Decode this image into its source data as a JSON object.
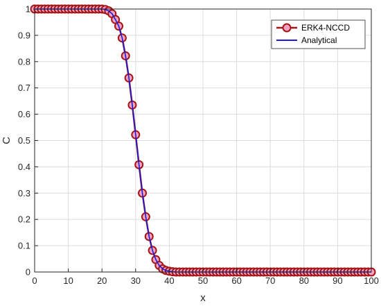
{
  "chart_data": {
    "type": "line",
    "xlabel": "x",
    "ylabel": "C",
    "xlim": [
      0,
      100
    ],
    "ylim": [
      0,
      1
    ],
    "xticks": [
      "0",
      "10",
      "20",
      "30",
      "40",
      "50",
      "60",
      "70",
      "80",
      "90",
      "100"
    ],
    "yticks": [
      "0",
      "0.1",
      "0.2",
      "0.3",
      "0.4",
      "0.5",
      "0.6",
      "0.7",
      "0.8",
      "0.9",
      "1"
    ],
    "grid": true,
    "legend_position": "top-right",
    "series": [
      {
        "name": "ERK4-NCCD",
        "style": "line-with-circle-markers",
        "color": "#a31515",
        "x": [
          0,
          1,
          2,
          3,
          4,
          5,
          6,
          7,
          8,
          9,
          10,
          11,
          12,
          13,
          14,
          15,
          16,
          17,
          18,
          19,
          20,
          21,
          22,
          23,
          24,
          25,
          26,
          27,
          28,
          29,
          30,
          31,
          32,
          33,
          34,
          35,
          36,
          37,
          38,
          39,
          40,
          41,
          42,
          43,
          44,
          45,
          46,
          47,
          48,
          49,
          50,
          51,
          52,
          53,
          54,
          55,
          56,
          57,
          58,
          59,
          60,
          61,
          62,
          63,
          64,
          65,
          66,
          67,
          68,
          69,
          70,
          71,
          72,
          73,
          74,
          75,
          76,
          77,
          78,
          79,
          80,
          81,
          82,
          83,
          84,
          85,
          86,
          87,
          88,
          89,
          90,
          91,
          92,
          93,
          94,
          95,
          96,
          97,
          98,
          99,
          100
        ],
        "y": [
          1,
          1,
          1,
          1,
          1,
          1,
          1,
          1,
          1,
          1,
          1,
          1,
          1,
          1,
          1,
          1,
          1,
          1,
          1,
          1,
          1,
          0.998,
          0.993,
          0.982,
          0.96,
          0.935,
          0.89,
          0.822,
          0.738,
          0.635,
          0.522,
          0.408,
          0.3,
          0.21,
          0.135,
          0.082,
          0.047,
          0.025,
          0.012,
          0.006,
          0.003,
          0.001,
          0,
          0,
          0,
          0,
          0,
          0,
          0,
          0,
          0,
          0,
          0,
          0,
          0,
          0,
          0,
          0,
          0,
          0,
          0,
          0,
          0,
          0,
          0,
          0,
          0,
          0,
          0,
          0,
          0,
          0,
          0,
          0,
          0,
          0,
          0,
          0,
          0,
          0,
          0,
          0,
          0,
          0,
          0,
          0,
          0,
          0,
          0,
          0,
          0,
          0,
          0,
          0,
          0,
          0,
          0,
          0,
          0,
          0,
          0
        ]
      },
      {
        "name": "Analytical",
        "style": "line",
        "color": "#1a1adb",
        "x": [
          0,
          1,
          2,
          3,
          4,
          5,
          6,
          7,
          8,
          9,
          10,
          11,
          12,
          13,
          14,
          15,
          16,
          17,
          18,
          19,
          20,
          21,
          22,
          23,
          24,
          25,
          26,
          27,
          28,
          29,
          30,
          31,
          32,
          33,
          34,
          35,
          36,
          37,
          38,
          39,
          40,
          41,
          42,
          43,
          44,
          45,
          46,
          47,
          48,
          49,
          50,
          51,
          52,
          53,
          54,
          55,
          56,
          57,
          58,
          59,
          60,
          61,
          62,
          63,
          64,
          65,
          66,
          67,
          68,
          69,
          70,
          71,
          72,
          73,
          74,
          75,
          76,
          77,
          78,
          79,
          80,
          81,
          82,
          83,
          84,
          85,
          86,
          87,
          88,
          89,
          90,
          91,
          92,
          93,
          94,
          95,
          96,
          97,
          98,
          99,
          100
        ],
        "y": [
          1,
          1,
          1,
          1,
          1,
          1,
          1,
          1,
          1,
          1,
          1,
          1,
          1,
          1,
          1,
          1,
          1,
          1,
          1,
          1,
          1,
          0.998,
          0.993,
          0.982,
          0.96,
          0.935,
          0.89,
          0.822,
          0.738,
          0.635,
          0.522,
          0.408,
          0.3,
          0.21,
          0.135,
          0.082,
          0.047,
          0.025,
          0.012,
          0.006,
          0.003,
          0.001,
          0,
          0,
          0,
          0,
          0,
          0,
          0,
          0,
          0,
          0,
          0,
          0,
          0,
          0,
          0,
          0,
          0,
          0,
          0,
          0,
          0,
          0,
          0,
          0,
          0,
          0,
          0,
          0,
          0,
          0,
          0,
          0,
          0,
          0,
          0,
          0,
          0,
          0,
          0,
          0,
          0,
          0,
          0,
          0,
          0,
          0,
          0,
          0,
          0,
          0,
          0,
          0,
          0,
          0,
          0,
          0,
          0,
          0,
          0
        ]
      }
    ]
  }
}
